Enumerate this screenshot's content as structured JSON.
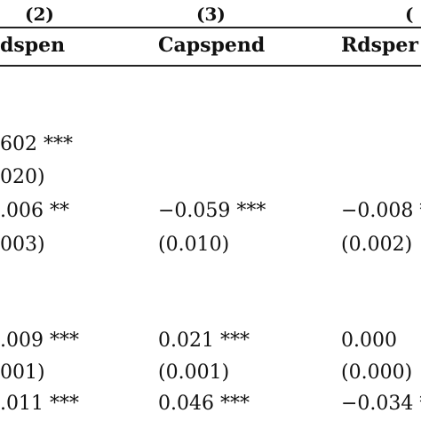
{
  "table": {
    "col_numbers": [
      "(2)",
      "(3)",
      "("
    ],
    "col_names": [
      "dspen",
      "Capspend",
      "Rdsper"
    ],
    "rows": [
      [
        "602 ***",
        "",
        ""
      ],
      [
        "020)",
        "",
        ""
      ],
      [
        ".006 **",
        "−0.059 ***",
        "−0.008 *"
      ],
      [
        "003)",
        "(0.010)",
        "(0.002)"
      ],
      [
        ".009 ***",
        "0.021 ***",
        "0.000"
      ],
      [
        "001)",
        "(0.001)",
        "(0.000)"
      ],
      [
        ".011 ***",
        "0.046 ***",
        "−0.034 *"
      ]
    ]
  }
}
